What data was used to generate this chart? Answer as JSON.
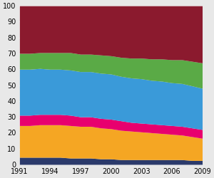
{
  "years": [
    1991,
    1992,
    1993,
    1994,
    1995,
    1996,
    1997,
    1998,
    1999,
    2000,
    2001,
    2002,
    2003,
    2004,
    2005,
    2006,
    2007,
    2008,
    2009
  ],
  "layers": {
    "navy": [
      4.5,
      4.5,
      4.5,
      4.5,
      4.5,
      4.0,
      4.0,
      4.0,
      3.5,
      3.5,
      3.0,
      3.0,
      3.0,
      3.0,
      3.0,
      3.0,
      3.0,
      2.5,
      2.5
    ],
    "orange": [
      20.0,
      20.0,
      20.5,
      20.5,
      20.5,
      20.5,
      20.0,
      20.0,
      19.5,
      19.0,
      18.5,
      18.0,
      17.5,
      17.0,
      16.5,
      16.0,
      15.5,
      15.0,
      14.0
    ],
    "pink": [
      6.5,
      6.5,
      6.5,
      6.5,
      6.5,
      6.5,
      6.0,
      6.0,
      6.0,
      6.0,
      6.0,
      5.5,
      5.5,
      5.5,
      5.5,
      5.5,
      5.5,
      5.5,
      5.5
    ],
    "blue": [
      29.0,
      29.0,
      29.0,
      28.5,
      28.5,
      28.5,
      28.5,
      28.5,
      28.5,
      28.5,
      28.0,
      28.0,
      28.0,
      27.5,
      27.5,
      27.0,
      27.0,
      26.5,
      26.0
    ],
    "green": [
      10.0,
      10.0,
      10.0,
      10.5,
      10.5,
      11.0,
      11.0,
      11.0,
      11.5,
      11.5,
      12.0,
      12.5,
      13.0,
      13.5,
      14.0,
      14.5,
      15.0,
      15.5,
      16.0
    ],
    "darkred": [
      30.0,
      30.0,
      29.5,
      29.5,
      29.5,
      29.5,
      30.5,
      30.5,
      31.0,
      31.5,
      32.5,
      33.0,
      33.0,
      33.5,
      33.5,
      34.0,
      34.0,
      35.0,
      36.0
    ]
  },
  "colors": {
    "navy": "#2b3a6b",
    "orange": "#f5a623",
    "pink": "#e8006e",
    "blue": "#3a9ad9",
    "green": "#5aaa46",
    "darkred": "#8b1a2e"
  },
  "ylim": [
    0,
    100
  ],
  "yticks": [
    0,
    10,
    20,
    30,
    40,
    50,
    60,
    70,
    80,
    90,
    100
  ],
  "xticks": [
    1991,
    1994,
    1997,
    2000,
    2003,
    2006,
    2009
  ],
  "background_color": "#e8e8e8"
}
